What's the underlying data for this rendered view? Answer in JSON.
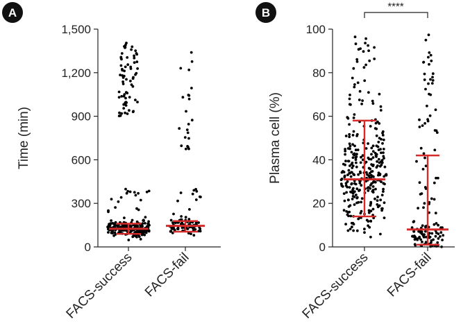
{
  "chart_data": [
    {
      "type": "scatter",
      "panel_label": "A",
      "ylabel": "Time (min)",
      "ylim": [
        0,
        1500
      ],
      "yticks": [
        0,
        300,
        600,
        900,
        1200,
        1500
      ],
      "ytick_labels": [
        "0",
        "300",
        "600",
        "900",
        "1,200",
        "1,500"
      ],
      "categories": [
        "FACS-success",
        "FACS-fail"
      ],
      "groups": [
        {
          "name": "FACS-success",
          "n": 300,
          "median": 125,
          "q1": 90,
          "q3": 160,
          "max": 1420,
          "high_cluster": [
            900,
            1420
          ],
          "high_n": 70
        },
        {
          "name": "FACS-fail",
          "n": 110,
          "median": 145,
          "q1": 105,
          "q3": 178,
          "max": 1420,
          "high_cluster": [
            600,
            1420
          ],
          "high_n": 22
        }
      ],
      "summary_color": "#d42a2a"
    },
    {
      "type": "scatter",
      "panel_label": "B",
      "ylabel": "Plasma cell (%)",
      "ylim": [
        0,
        100
      ],
      "yticks": [
        0,
        20,
        40,
        60,
        80,
        100
      ],
      "ytick_labels": [
        "0",
        "20",
        "40",
        "60",
        "80",
        "100"
      ],
      "categories": [
        "FACS-success",
        "FACS-fail"
      ],
      "groups": [
        {
          "name": "FACS-success",
          "n": 320,
          "median": 31,
          "q1": 14,
          "q3": 58,
          "max": 100
        },
        {
          "name": "FACS-fail",
          "n": 130,
          "median": 8,
          "q1": 1,
          "q3": 42,
          "max": 98
        }
      ],
      "significance": "****",
      "summary_color": "#d42a2a"
    }
  ]
}
